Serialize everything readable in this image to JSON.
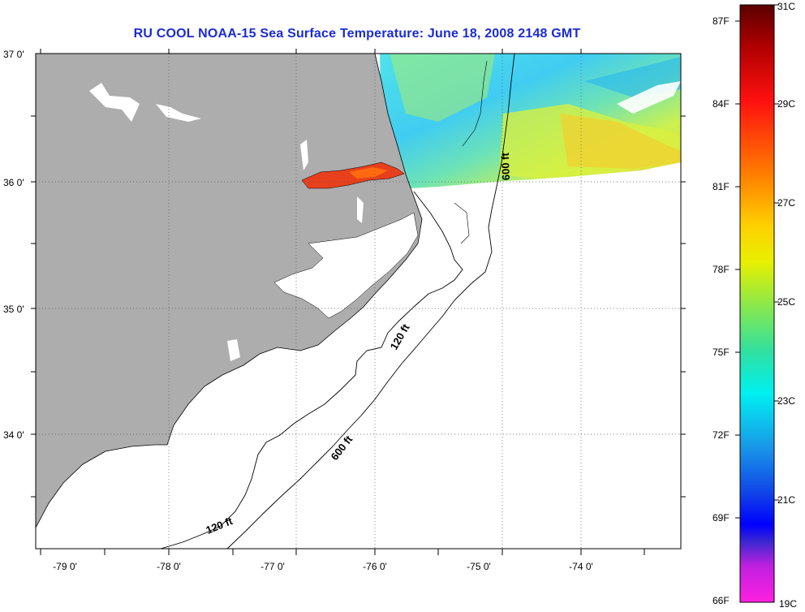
{
  "title": "RU COOL  NOAA-15  Sea Surface Temperature:  June 18, 2008 2148 GMT",
  "map": {
    "lat_ticks": [
      "37 0'",
      "36 0'",
      "35 0'",
      "34 0'"
    ],
    "lon_ticks": [
      "-79 0'",
      "-78 0'",
      "-77 0'",
      "-76 0'",
      "-75 0'",
      "-74 0'"
    ],
    "contour_labels": [
      "600 ft",
      "120 ft",
      "600 ft",
      "120 ft"
    ]
  },
  "colorbar": {
    "fahrenheit_labels": [
      "87F",
      "84F",
      "81F",
      "78F",
      "75F",
      "72F",
      "69F",
      "66F"
    ],
    "celsius_labels": [
      "31C",
      "29C",
      "27C",
      "25C",
      "23C",
      "21C",
      "19C"
    ]
  },
  "colors": {
    "land": "#adadad",
    "title": "#1a2bd6",
    "warm": "#e8401c",
    "cool": "#4ad8e6"
  }
}
